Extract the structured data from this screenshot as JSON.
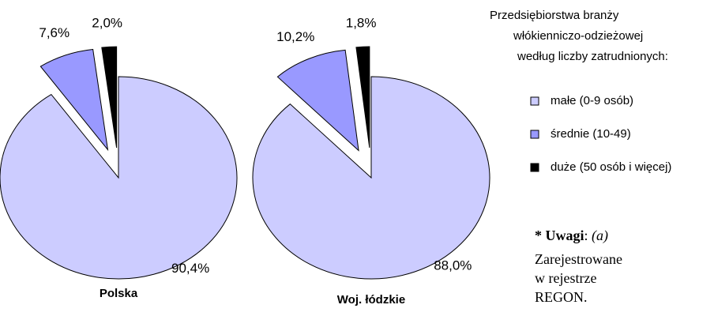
{
  "chart_data": [
    {
      "type": "pie",
      "title": "Polska",
      "values": [
        90.4,
        7.6,
        2.0
      ],
      "value_labels": [
        "90,4%",
        "7,6%",
        "2,0%"
      ]
    },
    {
      "type": "pie",
      "title": "Woj. łódzkie",
      "values": [
        88.0,
        10.2,
        1.8
      ],
      "value_labels": [
        "88,0%",
        "10,2%",
        "1,8%"
      ]
    }
  ],
  "legend": {
    "title": [
      "Przedsiębiorstwa branży",
      "włókienniczo-odzieżowej",
      "według liczby zatrudnionych:"
    ],
    "categories": [
      "małe (0-9 osób)",
      "średnie (10-49)",
      "duże (50 osób i więcej)"
    ],
    "colors": [
      "#ccccff",
      "#9999ff",
      "#000000"
    ]
  },
  "note": {
    "heading": "* Uwagi",
    "separator": ":",
    "ref": "(a)",
    "lines": [
      "Zarejestrowane",
      "w rejestrze",
      "REGON."
    ]
  }
}
